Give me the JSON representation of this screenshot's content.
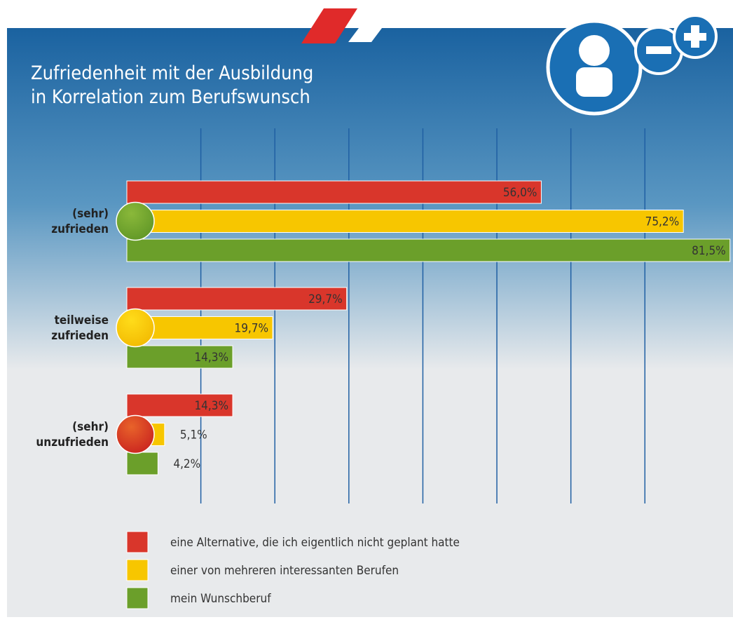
{
  "chart_data": {
    "type": "hbar",
    "title": "Zufriedenheit mit der Ausbildung\nin Korrelation zum Berufswunsch",
    "categories": [
      "(sehr)\nzufrieden",
      "teilweise\nzufrieden",
      "(sehr)\nunzufrieden"
    ],
    "series": [
      {
        "name": "eine Alternative, die ich eigentlich nicht geplant hatte",
        "color": "#d9362b",
        "values": [
          56.0,
          29.7,
          14.3
        ],
        "value_labels": [
          "56,0%",
          "29,7%",
          "14,3%"
        ]
      },
      {
        "name": "einer von mehreren interessanten Berufen",
        "color": "#f7c600",
        "values": [
          75.2,
          19.7,
          5.1
        ],
        "value_labels": [
          "75,2%",
          "19,7%",
          "5,1%"
        ]
      },
      {
        "name": "mein Wunschberuf",
        "color": "#6b9f2a",
        "values": [
          81.5,
          14.3,
          4.2
        ],
        "value_labels": [
          "81,5%",
          "14,3%",
          "4,2%"
        ]
      }
    ],
    "xlim": [
      0,
      82
    ],
    "xticks": [
      10,
      20,
      30,
      40,
      50,
      60,
      70
    ],
    "grid": true
  }
}
